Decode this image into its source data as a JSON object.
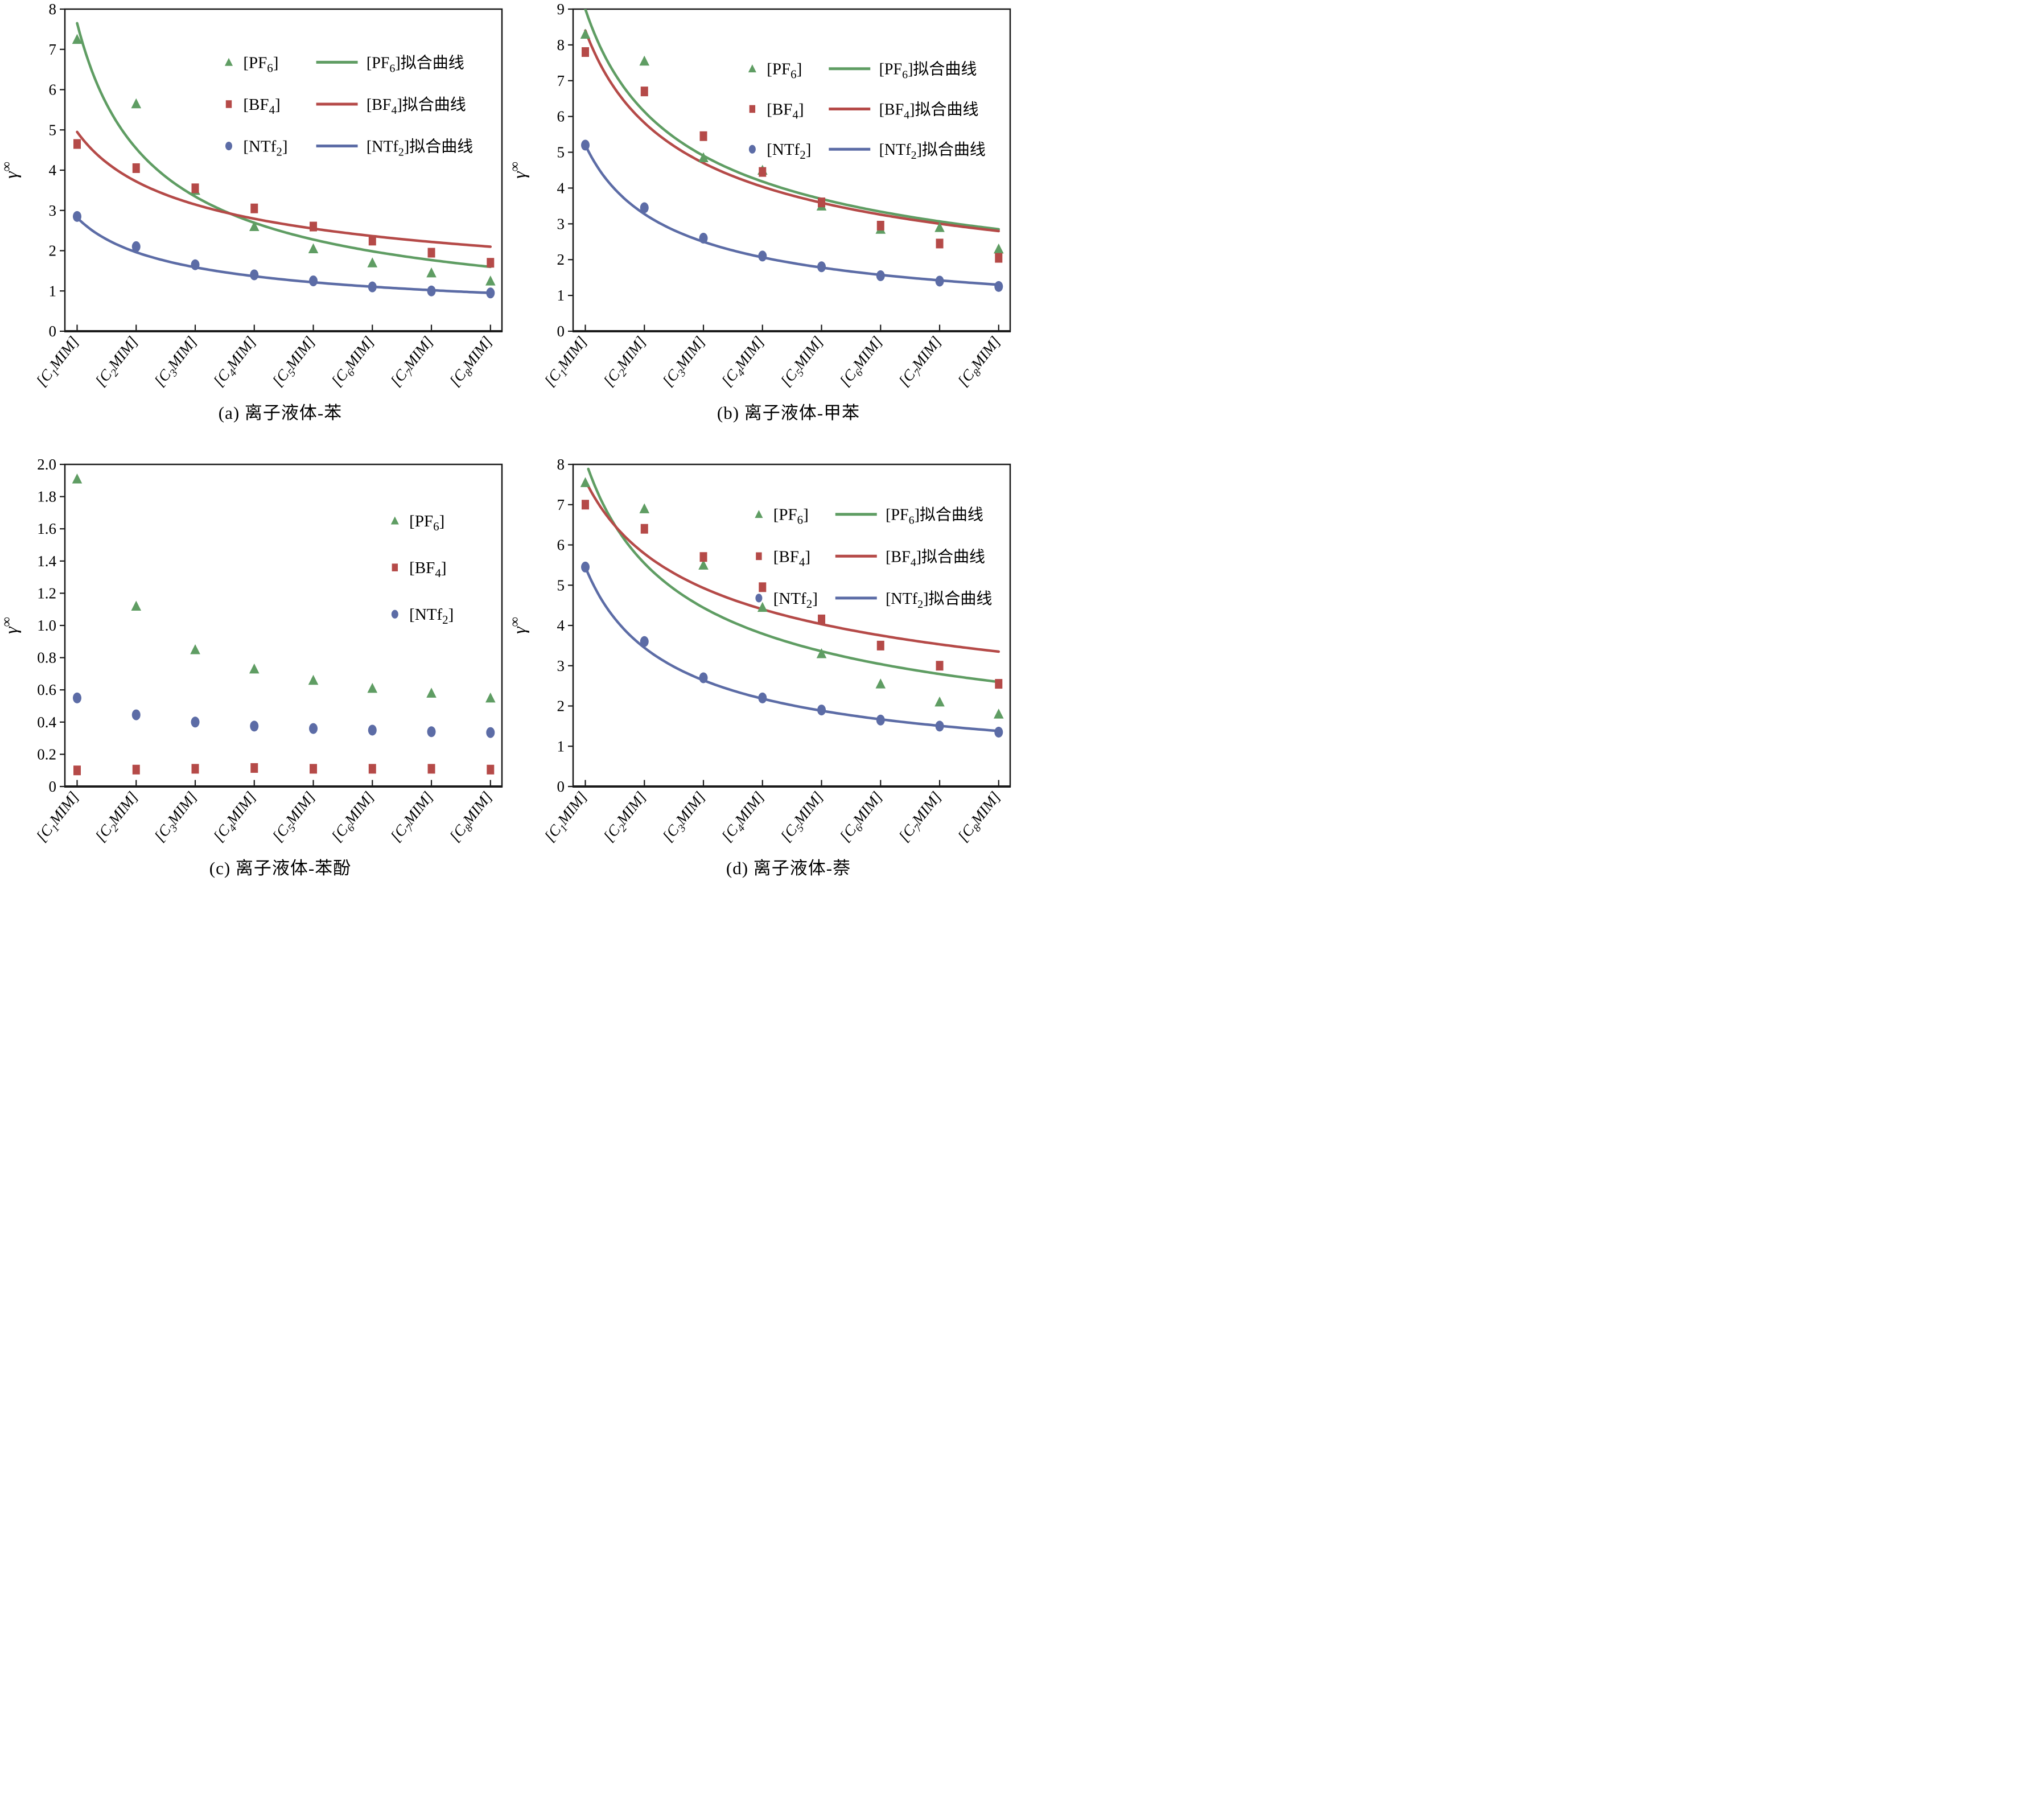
{
  "figure": {
    "background": "#ffffff",
    "axis_color": "#1a1a1a",
    "ylabel": {
      "base": "γ",
      "superscript": "∞"
    },
    "x_categories_structured": [
      {
        "prefix": "[C",
        "subscript": "1",
        "suffix": "MIM]"
      },
      {
        "prefix": "[C",
        "subscript": "2",
        "suffix": "MIM]"
      },
      {
        "prefix": "[C",
        "subscript": "3",
        "suffix": "MIM]"
      },
      {
        "prefix": "[C",
        "subscript": "4",
        "suffix": "MIM]"
      },
      {
        "prefix": "[C",
        "subscript": "5",
        "suffix": "MIM]"
      },
      {
        "prefix": "[C",
        "subscript": "6",
        "suffix": "MIM]"
      },
      {
        "prefix": "[C",
        "subscript": "7",
        "suffix": "MIM]"
      },
      {
        "prefix": "[C",
        "subscript": "8",
        "suffix": "MIM]"
      }
    ],
    "series_colors": {
      "pf6": "#5f9d63",
      "bf4": "#b54a48",
      "ntf2": "#5c6ca6"
    }
  },
  "chart_data": [
    {
      "id": "a",
      "type": "scatter",
      "caption": "(a) 离子液体-苯",
      "xlabel": "",
      "ylabel": "γ∞",
      "ylim": [
        0,
        8
      ],
      "ytick_labels": [
        "0",
        "1",
        "2",
        "3",
        "4",
        "5",
        "6",
        "7",
        "8"
      ],
      "x_categories": [
        "[C1MIM]",
        "[C2MIM]",
        "[C3MIM]",
        "[C4MIM]",
        "[C5MIM]",
        "[C6MIM]",
        "[C7MIM]",
        "[C8MIM]"
      ],
      "grid": false,
      "legend_position": "inside-upper-center-right",
      "legend_layout": {
        "marker_x_frac": 0.375,
        "label_x_frac": 0.408,
        "line_x_frac": 0.575,
        "line_len_frac": 0.095,
        "fit_text_x_frac": 0.69,
        "row1_y_frac": 0.165,
        "row_step_frac": 0.13,
        "show_fit": true
      },
      "series": [
        {
          "key": "pf6",
          "marker": "triangle",
          "color": "#5f9d63",
          "label": {
            "prefix": "[PF",
            "subscript": "6",
            "suffix": "]"
          },
          "fit_label": {
            "prefix": "[PF",
            "subscript": "6",
            "suffix": "]拟合曲线"
          },
          "values": [
            7.25,
            5.65,
            3.5,
            2.6,
            2.05,
            1.7,
            1.45,
            1.25
          ],
          "fit": {
            "type": "power",
            "a": 7.65,
            "b": -0.753
          }
        },
        {
          "key": "bf4",
          "marker": "square",
          "color": "#b54a48",
          "label": {
            "prefix": "[BF",
            "subscript": "4",
            "suffix": "]"
          },
          "fit_label": {
            "prefix": "[BF",
            "subscript": "4",
            "suffix": "]拟合曲线"
          },
          "values": [
            4.65,
            4.05,
            3.55,
            3.05,
            2.6,
            2.25,
            1.95,
            1.7
          ],
          "fit": {
            "type": "power",
            "a": 4.95,
            "b": -0.4125
          }
        },
        {
          "key": "ntf2",
          "marker": "circle",
          "color": "#5c6ca6",
          "label": {
            "prefix": "[NTf",
            "subscript": "2",
            "suffix": "]"
          },
          "fit_label": {
            "prefix": "[NTf",
            "subscript": "2",
            "suffix": "]拟合曲线"
          },
          "values": [
            2.85,
            2.1,
            1.65,
            1.4,
            1.25,
            1.1,
            1.0,
            0.95
          ],
          "fit": {
            "type": "power",
            "a": 2.82,
            "b": -0.523
          }
        }
      ]
    },
    {
      "id": "b",
      "type": "scatter",
      "caption": "(b) 离子液体-甲苯",
      "xlabel": "",
      "ylabel": "γ∞",
      "ylim": [
        0,
        9
      ],
      "ytick_labels": [
        "0",
        "1",
        "2",
        "3",
        "4",
        "5",
        "6",
        "7",
        "8",
        "9"
      ],
      "x_categories": [
        "[C1MIM]",
        "[C2MIM]",
        "[C3MIM]",
        "[C4MIM]",
        "[C5MIM]",
        "[C6MIM]",
        "[C7MIM]",
        "[C8MIM]"
      ],
      "grid": false,
      "legend_position": "inside-upper-right",
      "legend_layout": {
        "marker_x_frac": 0.41,
        "label_x_frac": 0.443,
        "line_x_frac": 0.585,
        "line_len_frac": 0.095,
        "fit_text_x_frac": 0.7,
        "row1_y_frac": 0.185,
        "row_step_frac": 0.125,
        "show_fit": true
      },
      "series": [
        {
          "key": "pf6",
          "marker": "triangle",
          "color": "#5f9d63",
          "label": {
            "prefix": "[PF",
            "subscript": "6",
            "suffix": "]"
          },
          "fit_label": {
            "prefix": "[PF",
            "subscript": "6",
            "suffix": "]拟合曲线"
          },
          "values": [
            8.3,
            7.55,
            4.85,
            4.5,
            3.5,
            2.85,
            2.9,
            2.3
          ],
          "fit": {
            "type": "power",
            "a": 9.0,
            "b": -0.553
          }
        },
        {
          "key": "bf4",
          "marker": "square",
          "color": "#b54a48",
          "label": {
            "prefix": "[BF",
            "subscript": "4",
            "suffix": "]"
          },
          "fit_label": {
            "prefix": "[BF",
            "subscript": "4",
            "suffix": "]拟合曲线"
          },
          "values": [
            7.8,
            6.7,
            5.45,
            4.45,
            3.6,
            2.95,
            2.45,
            2.05
          ],
          "fit": {
            "type": "power",
            "a": 8.4,
            "b": -0.5285
          }
        },
        {
          "key": "ntf2",
          "marker": "circle",
          "color": "#5c6ca6",
          "label": {
            "prefix": "[NTf",
            "subscript": "2",
            "suffix": "]"
          },
          "fit_label": {
            "prefix": "[NTf",
            "subscript": "2",
            "suffix": "]拟合曲线"
          },
          "values": [
            5.2,
            3.45,
            2.6,
            2.1,
            1.8,
            1.55,
            1.4,
            1.25
          ],
          "fit": {
            "type": "power",
            "a": 5.2,
            "b": -0.6667
          }
        }
      ]
    },
    {
      "id": "c",
      "type": "scatter",
      "caption": "(c) 离子液体-苯酚",
      "xlabel": "",
      "ylabel": "γ∞",
      "ylim": [
        0,
        2.0
      ],
      "ytick_labels": [
        "0",
        "0.2",
        "0.4",
        "0.6",
        "0.8",
        "1.0",
        "1.2",
        "1.4",
        "1.6",
        "1.8",
        "2.0"
      ],
      "x_categories": [
        "[C1MIM]",
        "[C2MIM]",
        "[C3MIM]",
        "[C4MIM]",
        "[C5MIM]",
        "[C6MIM]",
        "[C7MIM]",
        "[C8MIM]"
      ],
      "grid": false,
      "legend_position": "inside-upper-right",
      "legend_layout": {
        "marker_x_frac": 0.755,
        "label_x_frac": 0.788,
        "line_x_frac": 0,
        "line_len_frac": 0,
        "fit_text_x_frac": 0,
        "row1_y_frac": 0.175,
        "row_step_frac": 0.145,
        "show_fit": false
      },
      "series": [
        {
          "key": "pf6",
          "marker": "triangle",
          "color": "#5f9d63",
          "label": {
            "prefix": "[PF",
            "subscript": "6",
            "suffix": "]"
          },
          "fit_label": null,
          "values": [
            1.91,
            1.12,
            0.85,
            0.73,
            0.66,
            0.61,
            0.58,
            0.55
          ],
          "fit": null
        },
        {
          "key": "bf4",
          "marker": "square",
          "color": "#b54a48",
          "label": {
            "prefix": "[BF",
            "subscript": "4",
            "suffix": "]"
          },
          "fit_label": null,
          "values": [
            0.1,
            0.105,
            0.11,
            0.115,
            0.11,
            0.11,
            0.11,
            0.105
          ],
          "fit": null
        },
        {
          "key": "ntf2",
          "marker": "circle",
          "color": "#5c6ca6",
          "label": {
            "prefix": "[NTf",
            "subscript": "2",
            "suffix": "]"
          },
          "fit_label": null,
          "values": [
            0.55,
            0.445,
            0.4,
            0.375,
            0.36,
            0.35,
            0.34,
            0.335
          ],
          "fit": null
        }
      ]
    },
    {
      "id": "d",
      "type": "scatter",
      "caption": "(d) 离子液体-萘",
      "xlabel": "",
      "ylabel": "γ∞",
      "ylim": [
        0,
        8
      ],
      "ytick_labels": [
        "0",
        "1",
        "2",
        "3",
        "4",
        "5",
        "6",
        "7",
        "8"
      ],
      "x_categories": [
        "[C1MIM]",
        "[C2MIM]",
        "[C3MIM]",
        "[C4MIM]",
        "[C5MIM]",
        "[C6MIM]",
        "[C7MIM]",
        "[C8MIM]"
      ],
      "grid": false,
      "legend_position": "inside-upper-right",
      "legend_layout": {
        "marker_x_frac": 0.425,
        "label_x_frac": 0.458,
        "line_x_frac": 0.6,
        "line_len_frac": 0.095,
        "fit_text_x_frac": 0.715,
        "row1_y_frac": 0.155,
        "row_step_frac": 0.13,
        "show_fit": true
      },
      "series": [
        {
          "key": "pf6",
          "marker": "triangle",
          "color": "#5f9d63",
          "label": {
            "prefix": "[PF",
            "subscript": "6",
            "suffix": "]"
          },
          "fit_label": {
            "prefix": "[PF",
            "subscript": "6",
            "suffix": "]拟合曲线"
          },
          "values": [
            7.55,
            6.9,
            5.5,
            4.45,
            3.3,
            2.55,
            2.1,
            1.8
          ],
          "fit": {
            "type": "power",
            "a": 8.1,
            "b": -0.547
          }
        },
        {
          "key": "bf4",
          "marker": "square",
          "color": "#b54a48",
          "label": {
            "prefix": "[BF",
            "subscript": "4",
            "suffix": "]"
          },
          "fit_label": {
            "prefix": "[BF",
            "subscript": "4",
            "suffix": "]拟合曲线"
          },
          "values": [
            7.0,
            6.4,
            5.7,
            4.95,
            4.15,
            3.5,
            3.0,
            2.55
          ],
          "fit": {
            "type": "power",
            "a": 7.6,
            "b": -0.3939
          }
        },
        {
          "key": "ntf2",
          "marker": "circle",
          "color": "#5c6ca6",
          "label": {
            "prefix": "[NTf",
            "subscript": "2",
            "suffix": "]"
          },
          "fit_label": {
            "prefix": "[NTf",
            "subscript": "2",
            "suffix": "]拟合曲线"
          },
          "values": [
            5.45,
            3.6,
            2.7,
            2.2,
            1.9,
            1.65,
            1.5,
            1.35
          ],
          "fit": {
            "type": "power",
            "a": 5.45,
            "b": -0.6606
          }
        }
      ]
    }
  ]
}
